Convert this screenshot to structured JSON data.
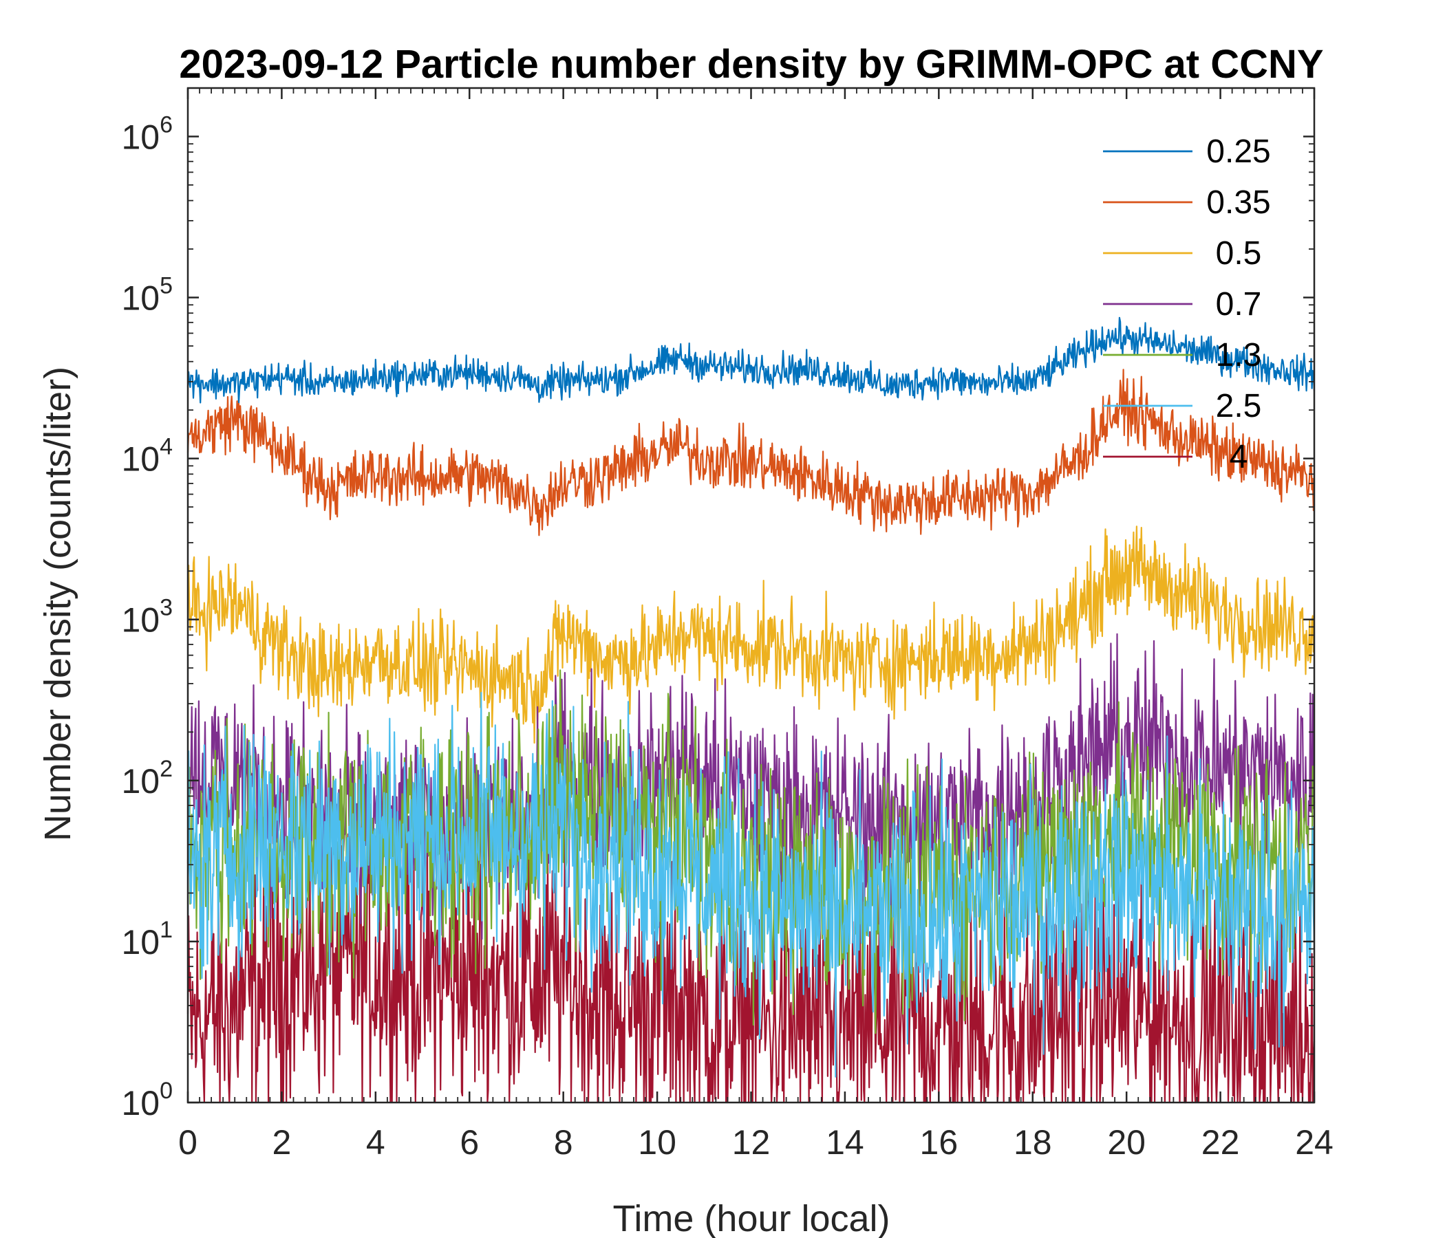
{
  "chart_data": {
    "type": "line",
    "title": "2023-09-12 Particle number density by GRIMM-OPC at CCNY",
    "xlabel": "Time (hour local)",
    "ylabel": "Number density (counts/liter)",
    "xlim": [
      0,
      24
    ],
    "ylim": [
      1,
      2000000
    ],
    "yscale": "log",
    "xticks": [
      0,
      2,
      4,
      6,
      8,
      10,
      12,
      14,
      16,
      18,
      20,
      22,
      24
    ],
    "yticks": [
      {
        "value": 1,
        "base": "10",
        "exp": "0"
      },
      {
        "value": 10,
        "base": "10",
        "exp": "1"
      },
      {
        "value": 100,
        "base": "10",
        "exp": "2"
      },
      {
        "value": 1000,
        "base": "10",
        "exp": "3"
      },
      {
        "value": 10000,
        "base": "10",
        "exp": "4"
      },
      {
        "value": 100000,
        "base": "10",
        "exp": "5"
      },
      {
        "value": 1000000,
        "base": "10",
        "exp": "6"
      }
    ],
    "legend_position": "top-right",
    "x": [
      0,
      1,
      2,
      3,
      4,
      5,
      6,
      7,
      7.5,
      8,
      9,
      10,
      10.5,
      11,
      12,
      13,
      14,
      15,
      16,
      17,
      18,
      19,
      19.6,
      20,
      21,
      22,
      23,
      24
    ],
    "series": [
      {
        "name": "0.25",
        "color": "#0072BD",
        "noise": 0.05,
        "values": [
          30000,
          29000,
          32000,
          29000,
          32000,
          33000,
          34000,
          32000,
          28000,
          30000,
          31000,
          38000,
          42000,
          38000,
          36000,
          36000,
          33000,
          28000,
          31000,
          29000,
          30000,
          45000,
          57000,
          56000,
          50000,
          43000,
          37000,
          33000
        ]
      },
      {
        "name": "0.35",
        "color": "#D95319",
        "noise": 0.09,
        "values": [
          13000,
          18000,
          11000,
          6500,
          8000,
          7500,
          8000,
          6500,
          5000,
          7000,
          8000,
          11000,
          12000,
          10000,
          9500,
          8000,
          6500,
          5200,
          5500,
          5800,
          6200,
          10000,
          18000,
          21000,
          14000,
          11000,
          9000,
          7500
        ]
      },
      {
        "name": "0.5",
        "color": "#EDB120",
        "noise": 0.14,
        "values": [
          1100,
          1300,
          650,
          450,
          600,
          500,
          500,
          420,
          380,
          850,
          550,
          650,
          850,
          750,
          700,
          650,
          550,
          550,
          600,
          600,
          700,
          1100,
          1800,
          2100,
          1600,
          1100,
          950,
          850
        ]
      },
      {
        "name": "0.7",
        "color": "#7E2F8E",
        "noise": 0.28,
        "values": [
          120,
          110,
          75,
          55,
          50,
          50,
          50,
          55,
          60,
          130,
          85,
          90,
          140,
          100,
          80,
          65,
          60,
          55,
          55,
          60,
          80,
          120,
          160,
          170,
          150,
          120,
          110,
          100
        ]
      },
      {
        "name": "1.3",
        "color": "#77AC30",
        "noise": 0.34,
        "values": [
          45,
          42,
          40,
          35,
          45,
          48,
          45,
          50,
          50,
          90,
          55,
          45,
          55,
          35,
          25,
          22,
          20,
          20,
          22,
          25,
          28,
          45,
          50,
          50,
          40,
          35,
          32,
          30
        ]
      },
      {
        "name": "2.5",
        "color": "#4DBEEE",
        "noise": 0.36,
        "values": [
          25,
          40,
          45,
          40,
          45,
          45,
          45,
          48,
          45,
          50,
          35,
          30,
          30,
          25,
          20,
          15,
          14,
          13,
          14,
          16,
          18,
          22,
          24,
          24,
          20,
          18,
          16,
          15
        ]
      },
      {
        "name": "4",
        "color": "#A2142F",
        "noise": 0.4,
        "values": [
          3,
          4,
          6,
          7,
          7,
          6,
          6,
          6,
          6,
          6,
          4,
          4,
          4,
          3,
          3,
          3,
          3,
          3,
          3,
          3,
          3,
          4,
          4,
          4,
          3.5,
          3,
          3,
          3
        ]
      }
    ]
  }
}
